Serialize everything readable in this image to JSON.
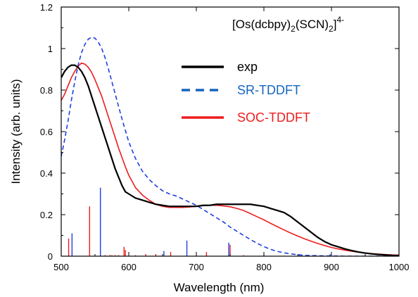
{
  "chart_data": {
    "type": "line",
    "title": {
      "prefix": "[Os(dcbpy)",
      "sub1": "2",
      "mid": "(SCN)",
      "sub2": "2",
      "suffix": "]",
      "sup": "4-"
    },
    "xlabel": "Wavelength (nm)",
    "ylabel": "Intensity (arb. units)",
    "xlim": [
      500,
      1000
    ],
    "ylim": [
      0,
      1.2
    ],
    "x_ticks": [
      500,
      600,
      700,
      800,
      900,
      1000
    ],
    "y_ticks": [
      0,
      0.2,
      0.4,
      0.6,
      0.8,
      1,
      1.2
    ],
    "y_tick_labels": [
      "0",
      "0.2",
      "0.4",
      "0.6",
      "0.8",
      "1",
      "1.2"
    ],
    "legend_placement": "top-right",
    "grid": false,
    "series": [
      {
        "name": "exp",
        "color": "#000000",
        "style": "solid",
        "x": [
          500,
          505,
          510,
          515,
          520,
          525,
          530,
          535,
          540,
          545,
          550,
          555,
          560,
          565,
          570,
          575,
          580,
          585,
          590,
          595,
          600,
          610,
          620,
          630,
          640,
          650,
          660,
          670,
          680,
          690,
          700,
          710,
          720,
          730,
          740,
          750,
          760,
          770,
          780,
          790,
          800,
          810,
          820,
          830,
          840,
          850,
          860,
          870,
          880,
          890,
          900,
          910,
          920,
          930,
          940,
          950,
          960,
          970,
          980,
          990,
          1000
        ],
        "values": [
          0.86,
          0.89,
          0.91,
          0.92,
          0.92,
          0.91,
          0.89,
          0.86,
          0.82,
          0.77,
          0.72,
          0.67,
          0.62,
          0.57,
          0.52,
          0.47,
          0.42,
          0.38,
          0.34,
          0.31,
          0.3,
          0.28,
          0.27,
          0.26,
          0.25,
          0.245,
          0.24,
          0.24,
          0.24,
          0.24,
          0.24,
          0.245,
          0.245,
          0.25,
          0.25,
          0.25,
          0.25,
          0.25,
          0.25,
          0.245,
          0.24,
          0.23,
          0.22,
          0.21,
          0.19,
          0.165,
          0.14,
          0.115,
          0.09,
          0.07,
          0.055,
          0.045,
          0.035,
          0.027,
          0.02,
          0.015,
          0.011,
          0.008,
          0.006,
          0.004,
          0.003
        ]
      },
      {
        "name": "SR-TDDFT",
        "color": "#1f3fe0",
        "style": "dashed",
        "x": [
          500,
          505,
          510,
          515,
          520,
          525,
          530,
          535,
          540,
          545,
          550,
          555,
          560,
          565,
          570,
          575,
          580,
          585,
          590,
          595,
          600,
          610,
          620,
          630,
          640,
          650,
          660,
          670,
          680,
          690,
          700,
          710,
          720,
          730,
          740,
          750,
          760,
          770,
          780,
          790,
          800,
          810,
          820,
          830,
          840,
          850,
          860,
          870,
          880,
          890,
          900,
          920,
          940,
          960,
          980,
          1000
        ],
        "values": [
          0.48,
          0.56,
          0.65,
          0.75,
          0.84,
          0.92,
          0.98,
          1.02,
          1.045,
          1.055,
          1.05,
          1.03,
          1.0,
          0.955,
          0.9,
          0.84,
          0.78,
          0.72,
          0.66,
          0.605,
          0.55,
          0.47,
          0.41,
          0.37,
          0.34,
          0.315,
          0.3,
          0.29,
          0.275,
          0.26,
          0.245,
          0.225,
          0.205,
          0.185,
          0.165,
          0.14,
          0.12,
          0.1,
          0.08,
          0.062,
          0.046,
          0.033,
          0.023,
          0.016,
          0.011,
          0.007,
          0.004,
          0.003,
          0.002,
          0.001,
          0.001,
          0,
          0,
          0,
          0,
          0
        ]
      },
      {
        "name": "SOC-TDDFT",
        "color": "#ee1c1c",
        "style": "solid",
        "x": [
          500,
          505,
          510,
          515,
          520,
          525,
          530,
          535,
          540,
          545,
          550,
          555,
          560,
          565,
          570,
          575,
          580,
          585,
          590,
          595,
          600,
          610,
          620,
          630,
          640,
          650,
          660,
          670,
          680,
          690,
          700,
          710,
          720,
          730,
          740,
          750,
          760,
          770,
          780,
          790,
          800,
          810,
          820,
          830,
          840,
          850,
          860,
          870,
          880,
          890,
          900,
          910,
          920,
          930,
          940,
          950,
          960,
          970,
          980,
          990,
          1000
        ],
        "values": [
          0.75,
          0.78,
          0.82,
          0.86,
          0.89,
          0.915,
          0.93,
          0.925,
          0.91,
          0.885,
          0.85,
          0.81,
          0.77,
          0.72,
          0.67,
          0.62,
          0.57,
          0.52,
          0.475,
          0.43,
          0.39,
          0.33,
          0.295,
          0.27,
          0.25,
          0.24,
          0.235,
          0.235,
          0.235,
          0.237,
          0.24,
          0.243,
          0.245,
          0.245,
          0.242,
          0.238,
          0.23,
          0.22,
          0.205,
          0.19,
          0.175,
          0.158,
          0.142,
          0.126,
          0.111,
          0.097,
          0.084,
          0.072,
          0.061,
          0.051,
          0.042,
          0.035,
          0.029,
          0.024,
          0.019,
          0.015,
          0.012,
          0.01,
          0.008,
          0.006,
          0.005
        ]
      }
    ],
    "stick_spectra": [
      {
        "name": "SR-TDDFT",
        "color": "#1f3fe0",
        "x": [
          516,
          558,
          652,
          686,
          748,
          852,
          898
        ],
        "values": [
          0.11,
          0.33,
          0.025,
          0.075,
          0.065,
          0.01,
          0.01
        ]
      },
      {
        "name": "SOC-TDDFT",
        "color": "#ee1c1c",
        "x": [
          511,
          542,
          565,
          572,
          575,
          580,
          585,
          593,
          595,
          610,
          625,
          640,
          662,
          715,
          750,
          770,
          800
        ],
        "values": [
          0.085,
          0.24,
          0.005,
          0.005,
          0.005,
          0.005,
          0.005,
          0.045,
          0.03,
          0.005,
          0.01,
          0.01,
          0.02,
          0.02,
          0.055,
          0.005,
          0.005
        ]
      }
    ]
  }
}
